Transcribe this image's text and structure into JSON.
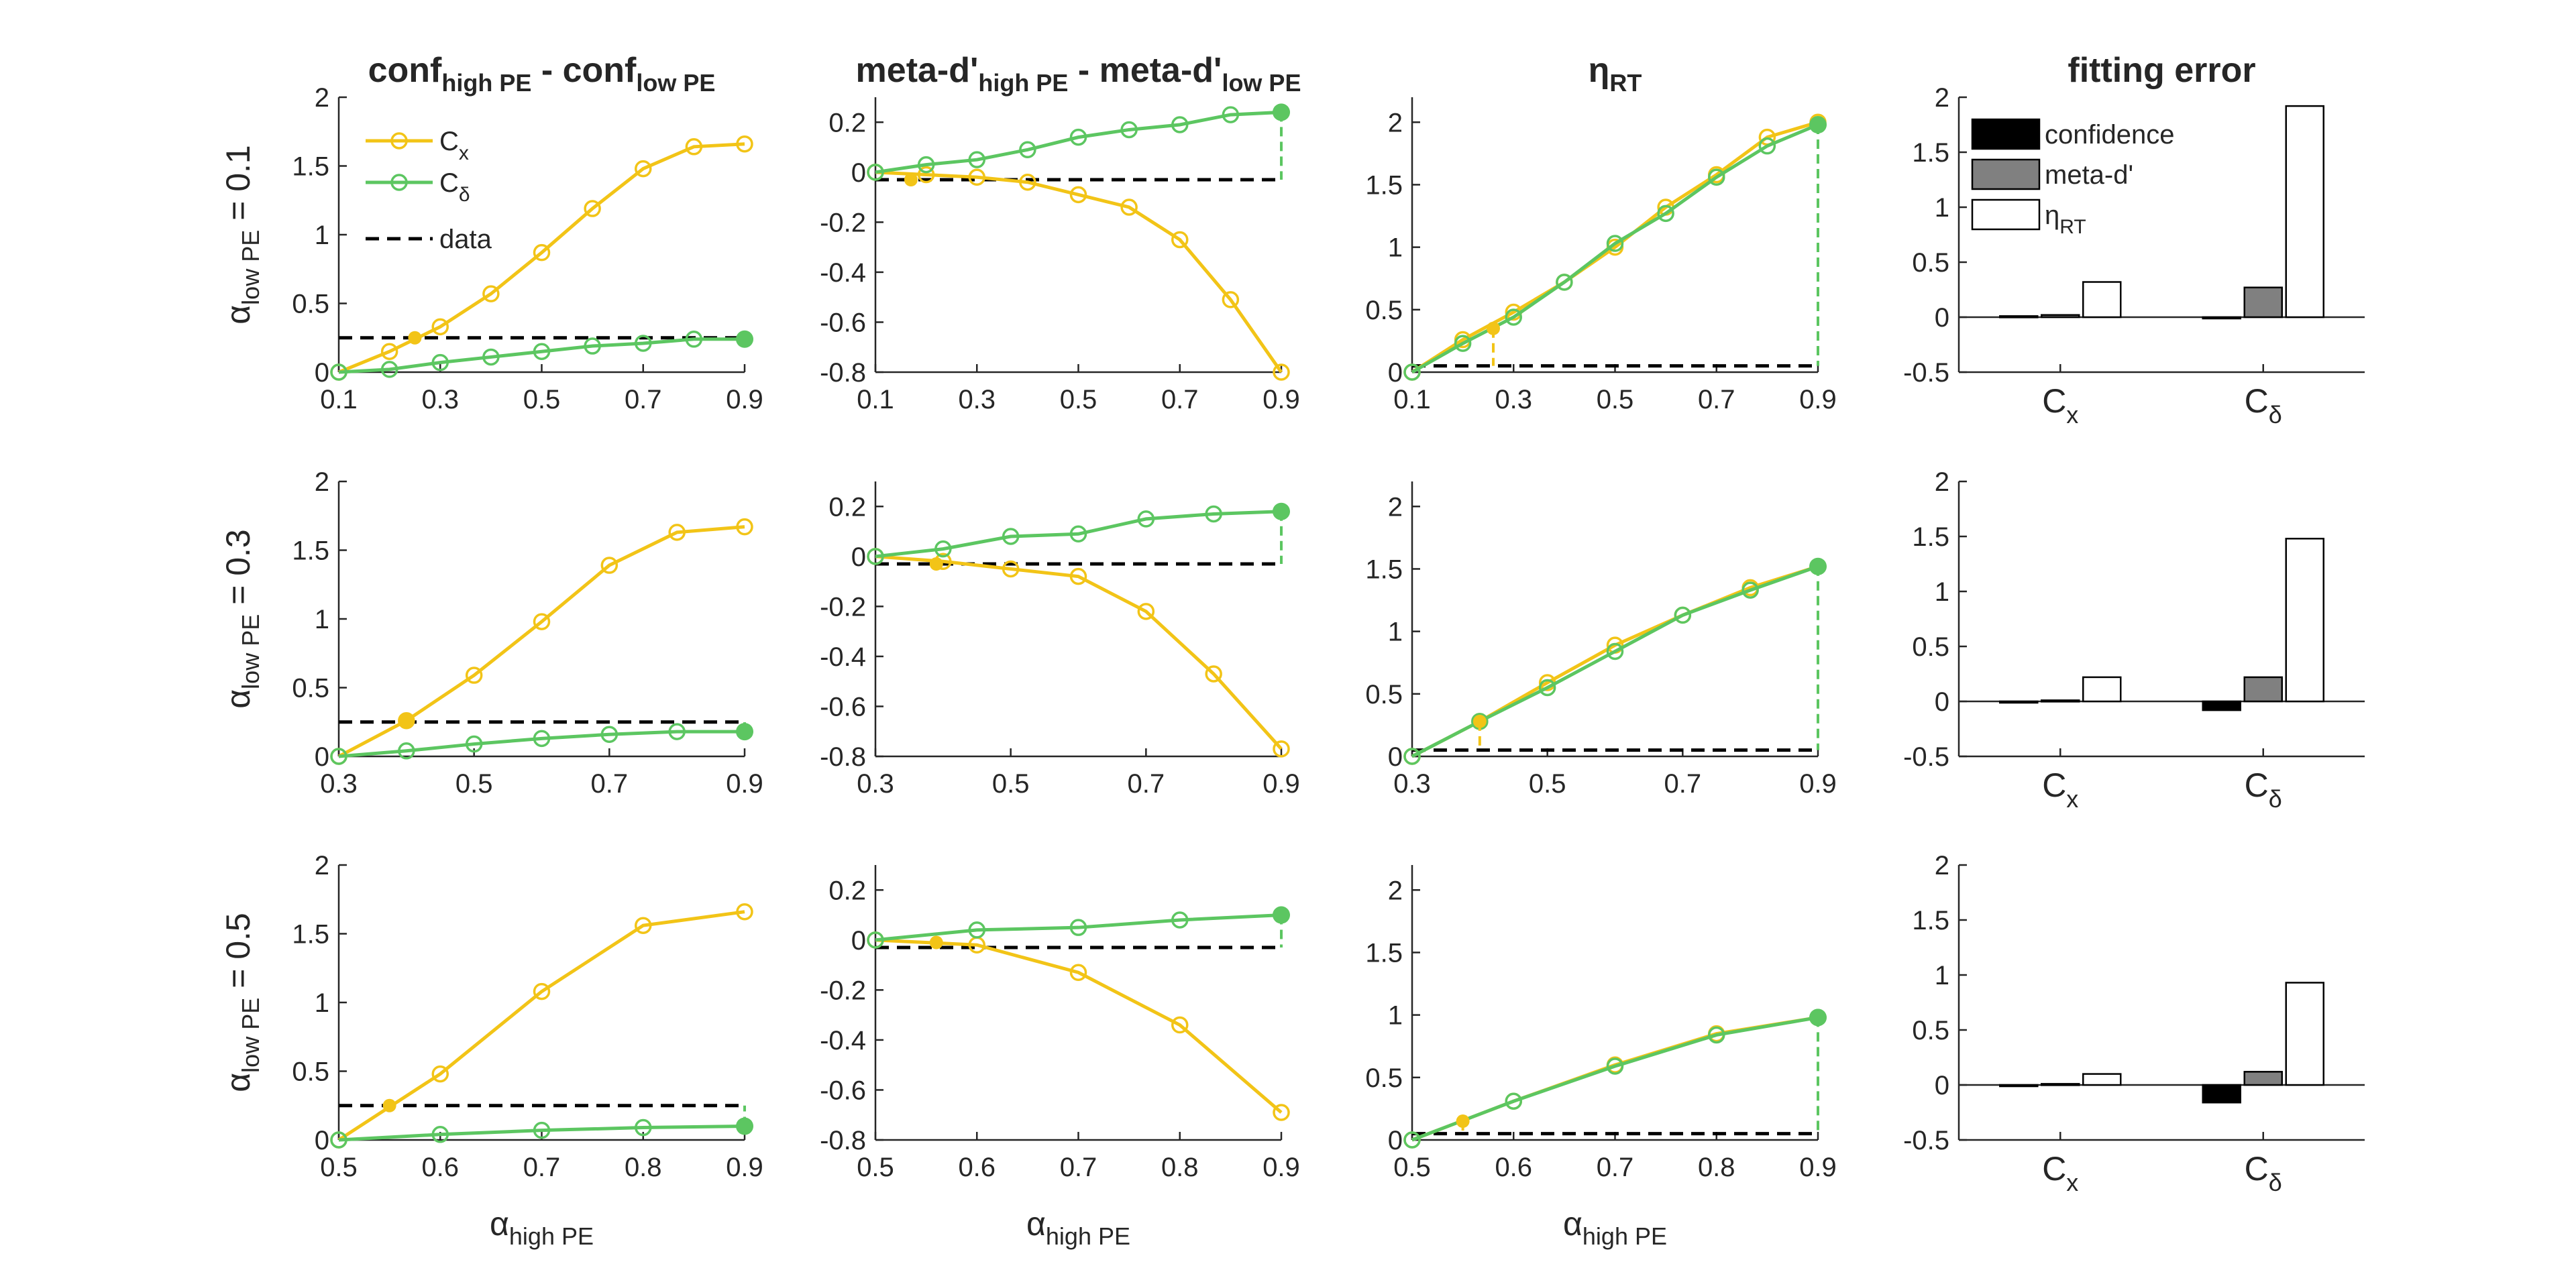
{
  "figure": {
    "column_titles": [
      {
        "main": "conf",
        "sub1": "high PE",
        "mid": " - conf",
        "sub2": "low PE"
      },
      {
        "main": "meta-d'",
        "sub1": "high PE",
        "mid": " - meta-d'",
        "sub2": "low PE"
      },
      {
        "main": "η",
        "sub1": "RT",
        "mid": "",
        "sub2": ""
      },
      {
        "main": "fitting error",
        "sub1": "",
        "mid": "",
        "sub2": ""
      }
    ],
    "row_labels": [
      {
        "greek": "α",
        "sub": "low PE",
        "rest": " = 0.1"
      },
      {
        "greek": "α",
        "sub": "low PE",
        "rest": " = 0.3"
      },
      {
        "greek": "α",
        "sub": "low PE",
        "rest": " = 0.5"
      }
    ],
    "xlabel": {
      "greek": "α",
      "sub": "high PE"
    },
    "legend_lines": [
      {
        "main": "C",
        "sub": "x"
      },
      {
        "main": "C",
        "sub": "δ"
      },
      {
        "main": "data",
        "sub": ""
      }
    ],
    "legend_bars": [
      {
        "main": "confidence",
        "sub": ""
      },
      {
        "main": "meta-d'",
        "sub": ""
      },
      {
        "main": "η",
        "sub": "RT"
      }
    ],
    "bar_groups": [
      {
        "main": "C",
        "sub": "x"
      },
      {
        "main": "C",
        "sub": "δ"
      }
    ],
    "colors": {
      "cx": "#f2c417",
      "cd": "#5cc661",
      "data": "#000000",
      "bar_confidence": "#000000",
      "bar_metad": "#808080",
      "bar_eta": "#ffffff",
      "axis": "#262626"
    }
  },
  "chart_data": [
    {
      "type": "line",
      "row": 0,
      "col": 0,
      "xlim": [
        0.1,
        0.9
      ],
      "ylim": [
        0,
        2
      ],
      "xticks": [
        "0.1",
        "0.3",
        "0.5",
        "0.7",
        "0.9"
      ],
      "yticks": [
        "0",
        "0.5",
        "1",
        "1.5",
        "2"
      ],
      "x": [
        0.1,
        0.2,
        0.3,
        0.4,
        0.5,
        0.6,
        0.7,
        0.8,
        0.9
      ],
      "series": [
        {
          "name": "Cx",
          "values": [
            0,
            0.15,
            0.33,
            0.57,
            0.87,
            1.19,
            1.48,
            1.64,
            1.66
          ]
        },
        {
          "name": "Cδ",
          "values": [
            0,
            0.02,
            0.07,
            0.11,
            0.15,
            0.19,
            0.21,
            0.24,
            0.24
          ]
        }
      ],
      "data_value": 0.25,
      "marker_cx": {
        "x": 0.25,
        "y": 0.25
      },
      "marker_cd": {
        "x": 0.9,
        "y": 0.24
      }
    },
    {
      "type": "line",
      "row": 0,
      "col": 1,
      "xlim": [
        0.1,
        0.9
      ],
      "ylim": [
        -0.8,
        0.3
      ],
      "xticks": [
        "0.1",
        "0.3",
        "0.5",
        "0.7",
        "0.9"
      ],
      "yticks": [
        "-0.8",
        "-0.6",
        "-0.4",
        "-0.2",
        "0",
        "0.2"
      ],
      "x": [
        0.1,
        0.2,
        0.3,
        0.4,
        0.5,
        0.6,
        0.7,
        0.8,
        0.9
      ],
      "series": [
        {
          "name": "Cx",
          "values": [
            0,
            -0.01,
            -0.02,
            -0.04,
            -0.09,
            -0.14,
            -0.27,
            -0.51,
            -0.8
          ]
        },
        {
          "name": "Cδ",
          "values": [
            0,
            0.03,
            0.05,
            0.09,
            0.14,
            0.17,
            0.19,
            0.23,
            0.24
          ]
        }
      ],
      "data_value": -0.03,
      "marker_cx": {
        "x": 0.17,
        "y": -0.03
      },
      "marker_cd": {
        "x": 0.9,
        "y": 0.24
      }
    },
    {
      "type": "line",
      "row": 0,
      "col": 2,
      "xlim": [
        0.1,
        0.9
      ],
      "ylim": [
        0,
        2.2
      ],
      "xticks": [
        "0.1",
        "0.3",
        "0.5",
        "0.7",
        "0.9"
      ],
      "yticks": [
        "0",
        "0.5",
        "1",
        "1.5",
        "2"
      ],
      "x": [
        0.1,
        0.2,
        0.3,
        0.4,
        0.5,
        0.6,
        0.7,
        0.8,
        0.9
      ],
      "series": [
        {
          "name": "Cx",
          "values": [
            0,
            0.26,
            0.48,
            0.72,
            1.0,
            1.32,
            1.58,
            1.88,
            2.0
          ]
        },
        {
          "name": "Cδ",
          "values": [
            0,
            0.23,
            0.44,
            0.72,
            1.03,
            1.27,
            1.56,
            1.81,
            1.98
          ]
        }
      ],
      "data_value": 0.05,
      "marker_cx": {
        "x": 0.26,
        "y": 0.35
      },
      "marker_cd": {
        "x": 0.9,
        "y": 1.98
      }
    },
    {
      "type": "bar",
      "row": 0,
      "col": 3,
      "ylim": [
        -0.5,
        2
      ],
      "yticks": [
        "-0.5",
        "0",
        "0.5",
        "1",
        "1.5",
        "2"
      ],
      "categories": [
        "Cx",
        "Cδ"
      ],
      "series": [
        {
          "name": "confidence",
          "values": [
            0.01,
            -0.01
          ]
        },
        {
          "name": "meta-d'",
          "values": [
            0.02,
            0.27
          ]
        },
        {
          "name": "ηRT",
          "values": [
            0.32,
            1.92
          ]
        }
      ]
    },
    {
      "type": "line",
      "row": 1,
      "col": 0,
      "xlim": [
        0.3,
        0.9
      ],
      "ylim": [
        0,
        2
      ],
      "xticks": [
        "0.3",
        "0.5",
        "0.7",
        "0.9"
      ],
      "yticks": [
        "0",
        "0.5",
        "1",
        "1.5",
        "2"
      ],
      "x": [
        0.3,
        0.4,
        0.5,
        0.6,
        0.7,
        0.8,
        0.9
      ],
      "series": [
        {
          "name": "Cx",
          "values": [
            0,
            0.26,
            0.59,
            0.98,
            1.39,
            1.63,
            1.67
          ]
        },
        {
          "name": "Cδ",
          "values": [
            0,
            0.04,
            0.09,
            0.13,
            0.16,
            0.18,
            0.18
          ]
        }
      ],
      "data_value": 0.25,
      "marker_cx": {
        "x": 0.4,
        "y": 0.26
      },
      "marker_cd": {
        "x": 0.9,
        "y": 0.18
      }
    },
    {
      "type": "line",
      "row": 1,
      "col": 1,
      "xlim": [
        0.3,
        0.9
      ],
      "ylim": [
        -0.8,
        0.3
      ],
      "xticks": [
        "0.3",
        "0.5",
        "0.7",
        "0.9"
      ],
      "yticks": [
        "-0.8",
        "-0.6",
        "-0.4",
        "-0.2",
        "0",
        "0.2"
      ],
      "x": [
        0.3,
        0.4,
        0.5,
        0.6,
        0.7,
        0.8,
        0.9
      ],
      "series": [
        {
          "name": "Cx",
          "values": [
            0,
            -0.02,
            -0.05,
            -0.08,
            -0.22,
            -0.47,
            -0.77
          ]
        },
        {
          "name": "Cδ",
          "values": [
            0,
            0.03,
            0.08,
            0.09,
            0.15,
            0.17,
            0.18
          ]
        }
      ],
      "data_value": -0.03,
      "marker_cx": {
        "x": 0.39,
        "y": -0.03
      },
      "marker_cd": {
        "x": 0.9,
        "y": 0.18
      }
    },
    {
      "type": "line",
      "row": 1,
      "col": 2,
      "xlim": [
        0.3,
        0.9
      ],
      "ylim": [
        0,
        2.2
      ],
      "xticks": [
        "0.3",
        "0.5",
        "0.7",
        "0.9"
      ],
      "yticks": [
        "0",
        "0.5",
        "1",
        "1.5",
        "2"
      ],
      "x": [
        0.3,
        0.4,
        0.5,
        0.6,
        0.7,
        0.8,
        0.9
      ],
      "series": [
        {
          "name": "Cx",
          "values": [
            0,
            0.28,
            0.59,
            0.89,
            1.13,
            1.35,
            1.52
          ]
        },
        {
          "name": "Cδ",
          "values": [
            0,
            0.28,
            0.55,
            0.84,
            1.13,
            1.33,
            1.52
          ]
        }
      ],
      "data_value": 0.05,
      "marker_cx": {
        "x": 0.4,
        "y": 0.28
      },
      "marker_cd": {
        "x": 0.9,
        "y": 1.52
      }
    },
    {
      "type": "bar",
      "row": 1,
      "col": 3,
      "ylim": [
        -0.5,
        2
      ],
      "yticks": [
        "-0.5",
        "0",
        "0.5",
        "1",
        "1.5",
        "2"
      ],
      "categories": [
        "Cx",
        "Cδ"
      ],
      "series": [
        {
          "name": "confidence",
          "values": [
            0.0,
            -0.08
          ]
        },
        {
          "name": "meta-d'",
          "values": [
            0.01,
            0.22
          ]
        },
        {
          "name": "ηRT",
          "values": [
            0.22,
            1.48
          ]
        }
      ]
    },
    {
      "type": "line",
      "row": 2,
      "col": 0,
      "xlim": [
        0.5,
        0.9
      ],
      "ylim": [
        0,
        2
      ],
      "xticks": [
        "0.5",
        "0.6",
        "0.7",
        "0.8",
        "0.9"
      ],
      "yticks": [
        "0",
        "0.5",
        "1",
        "1.5",
        "2"
      ],
      "x": [
        0.5,
        0.6,
        0.7,
        0.8,
        0.9
      ],
      "series": [
        {
          "name": "Cx",
          "values": [
            0,
            0.48,
            1.08,
            1.56,
            1.66
          ]
        },
        {
          "name": "Cδ",
          "values": [
            0,
            0.04,
            0.07,
            0.09,
            0.1
          ]
        }
      ],
      "data_value": 0.25,
      "marker_cx": {
        "x": 0.55,
        "y": 0.25
      },
      "marker_cd": {
        "x": 0.9,
        "y": 0.1
      }
    },
    {
      "type": "line",
      "row": 2,
      "col": 1,
      "xlim": [
        0.5,
        0.9
      ],
      "ylim": [
        -0.8,
        0.3
      ],
      "xticks": [
        "0.5",
        "0.6",
        "0.7",
        "0.8",
        "0.9"
      ],
      "yticks": [
        "-0.8",
        "-0.6",
        "-0.4",
        "-0.2",
        "0",
        "0.2"
      ],
      "x": [
        0.5,
        0.6,
        0.7,
        0.8,
        0.9
      ],
      "series": [
        {
          "name": "Cx",
          "values": [
            0,
            -0.02,
            -0.13,
            -0.34,
            -0.69
          ]
        },
        {
          "name": "Cδ",
          "values": [
            0,
            0.04,
            0.05,
            0.08,
            0.1
          ]
        }
      ],
      "data_value": -0.03,
      "marker_cx": {
        "x": 0.56,
        "y": -0.01
      },
      "marker_cd": {
        "x": 0.9,
        "y": 0.1
      }
    },
    {
      "type": "line",
      "row": 2,
      "col": 2,
      "xlim": [
        0.5,
        0.9
      ],
      "ylim": [
        0,
        2.2
      ],
      "xticks": [
        "0.5",
        "0.6",
        "0.7",
        "0.8",
        "0.9"
      ],
      "yticks": [
        "0",
        "0.5",
        "1",
        "1.5",
        "2"
      ],
      "x": [
        0.5,
        0.6,
        0.7,
        0.8,
        0.9
      ],
      "series": [
        {
          "name": "Cx",
          "values": [
            0,
            0.31,
            0.6,
            0.85,
            0.98
          ]
        },
        {
          "name": "Cδ",
          "values": [
            0,
            0.31,
            0.59,
            0.84,
            0.98
          ]
        }
      ],
      "data_value": 0.05,
      "marker_cx": {
        "x": 0.55,
        "y": 0.15
      },
      "marker_cd": {
        "x": 0.9,
        "y": 0.98
      }
    },
    {
      "type": "bar",
      "row": 2,
      "col": 3,
      "ylim": [
        -0.5,
        2
      ],
      "yticks": [
        "-0.5",
        "0",
        "0.5",
        "1",
        "1.5",
        "2"
      ],
      "categories": [
        "Cx",
        "Cδ"
      ],
      "series": [
        {
          "name": "confidence",
          "values": [
            0.0,
            -0.16
          ]
        },
        {
          "name": "meta-d'",
          "values": [
            0.01,
            0.12
          ]
        },
        {
          "name": "ηRT",
          "values": [
            0.1,
            0.93
          ]
        }
      ]
    }
  ]
}
